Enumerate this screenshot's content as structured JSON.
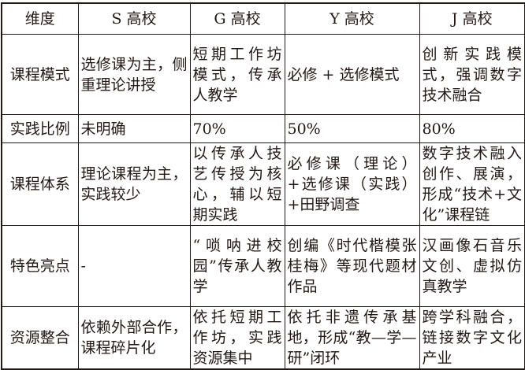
{
  "headers": [
    "维度",
    "S 高校",
    "G 高校",
    "Y 高校",
    "J 高校"
  ],
  "rows": [
    {
      "dimension": "课程模式",
      "cells": [
        "选修课为主，侧重理论讲授",
        "短期工作坊模式，传承人教学",
        "必修 + 选修模式",
        "创新实践模式，强调数字技术融合"
      ]
    },
    {
      "dimension": "实践比例",
      "cells": [
        "未明确",
        "70%",
        "50%",
        "80%"
      ]
    },
    {
      "dimension": "课程体系",
      "cells": [
        "理论课程为主，实践较少",
        "以传承人技艺传授为核心，辅以短期实践",
        "必修课（理论）+选修课（实践）+田野调查",
        "数字技术融入创作、展演，形成“技术+文化”课程链"
      ]
    },
    {
      "dimension": "特色亮点",
      "cells": [
        "-",
        "“唢呐进校园”传承人教学",
        "创编《时代楷模张桂梅》等现代题材作品",
        "汉画像石音乐文创、虚拟仿真教学"
      ]
    },
    {
      "dimension": "资源整合",
      "cells": [
        "依赖外部合作，课程碎片化",
        "依托短期工作坊，实践资源集中",
        "依托非遗传承基地，形成“教—学—研”闭环",
        "跨学科融合，链接数字文化产业"
      ]
    }
  ]
}
